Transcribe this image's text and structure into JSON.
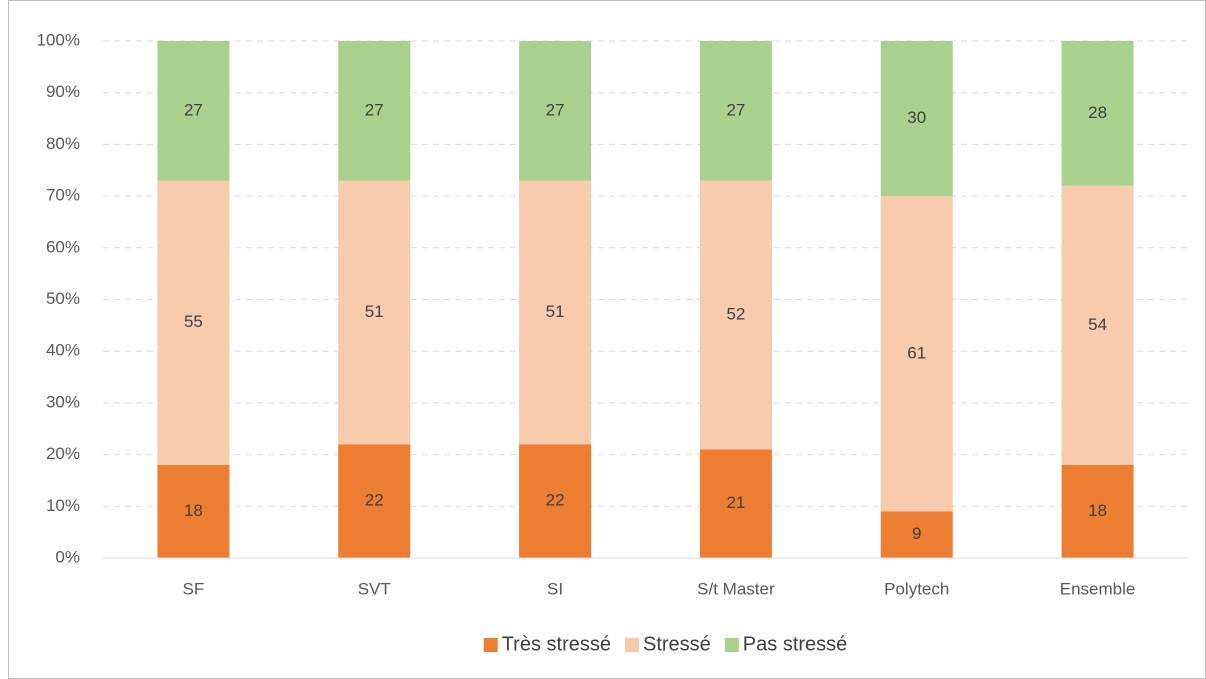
{
  "chart_data": {
    "type": "stacked_bar",
    "categories": [
      "SF",
      "SVT",
      "SI",
      "S/t Master",
      "Polytech",
      "Ensemble"
    ],
    "series": [
      {
        "name": "Très stressé",
        "color": "#ed7d31",
        "values": [
          18,
          22,
          22,
          21,
          9,
          18
        ]
      },
      {
        "name": "Stressé",
        "color": "#f8cbad",
        "values": [
          55,
          51,
          51,
          52,
          61,
          54
        ]
      },
      {
        "name": "Pas stressé",
        "color": "#a9d18e",
        "values": [
          27,
          27,
          27,
          27,
          30,
          28
        ]
      }
    ],
    "ylim": [
      0,
      100
    ],
    "yticks": [
      {
        "value": 0,
        "label": "0%"
      },
      {
        "value": 10,
        "label": "10%"
      },
      {
        "value": 20,
        "label": "20%"
      },
      {
        "value": 30,
        "label": "30%"
      },
      {
        "value": 40,
        "label": "40%"
      },
      {
        "value": 50,
        "label": "50%"
      },
      {
        "value": 60,
        "label": "60%"
      },
      {
        "value": 70,
        "label": "70%"
      },
      {
        "value": 80,
        "label": "80%"
      },
      {
        "value": 90,
        "label": "90%"
      },
      {
        "value": 100,
        "label": "100%"
      }
    ],
    "grid": true,
    "legend": "bottom"
  }
}
